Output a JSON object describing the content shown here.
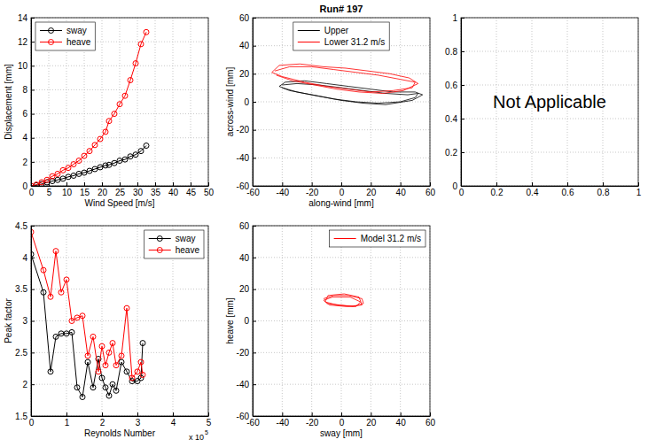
{
  "chart_data": [
    {
      "type": "line",
      "xlabel": "Wind Speed [m/s]",
      "ylabel": "Displacement [mm]",
      "x": [
        0,
        1.5,
        3,
        4.5,
        6,
        7.5,
        9,
        10.5,
        12,
        13.5,
        15,
        16.5,
        18,
        19.5,
        21,
        22,
        23.5,
        25,
        26.5,
        28,
        29.5,
        31,
        32.5
      ],
      "series": [
        {
          "name": "sway",
          "color": "#000000",
          "marker": "circle",
          "line_style": "solid",
          "values": [
            0,
            0.05,
            0.15,
            0.3,
            0.4,
            0.5,
            0.6,
            0.75,
            0.85,
            1.0,
            1.1,
            1.25,
            1.4,
            1.55,
            1.7,
            1.75,
            1.9,
            2.1,
            2.2,
            2.45,
            2.6,
            2.9,
            3.35
          ]
        },
        {
          "name": "heave",
          "color": "#ff0000",
          "marker": "circle",
          "line_style": "solid",
          "values": [
            0,
            0.1,
            0.3,
            0.5,
            0.8,
            1.0,
            1.3,
            1.5,
            1.8,
            2.1,
            2.5,
            2.9,
            3.4,
            3.9,
            4.5,
            5.4,
            6.0,
            6.8,
            7.5,
            8.8,
            10.2,
            11.8,
            12.8
          ]
        }
      ],
      "xlim": [
        0,
        50
      ],
      "ylim": [
        0,
        14
      ],
      "xticks": [
        0,
        5,
        10,
        15,
        20,
        25,
        30,
        35,
        40,
        45,
        50
      ],
      "yticks": [
        0,
        2,
        4,
        6,
        8,
        10,
        12,
        14
      ],
      "grid": true,
      "legend": "upper left"
    },
    {
      "type": "line",
      "title": "Run# 197",
      "xlabel": "along-wind [mm]",
      "ylabel": "across-wind [mm]",
      "series": [
        {
          "name": "Upper",
          "color": "#000000",
          "marker": "none",
          "line_style": "solid",
          "x": [
            -40,
            -30,
            -15,
            0,
            15,
            30,
            45,
            52,
            50,
            40,
            25,
            10,
            -5,
            -20,
            -35,
            -42,
            -38,
            -25,
            -10,
            5,
            20,
            35,
            50,
            55,
            48,
            30,
            15,
            0,
            -15,
            -30,
            -40
          ],
          "values": [
            12,
            13,
            12,
            10,
            8,
            6,
            5,
            6,
            3,
            0,
            -1,
            0,
            2,
            5,
            8,
            11,
            14,
            15,
            13,
            11,
            9,
            7,
            7,
            5,
            1,
            -2,
            -1,
            1,
            4,
            7,
            10
          ]
        },
        {
          "name": "Lower 31.2 m/s",
          "color": "#ff0000",
          "marker": "none",
          "line_style": "solid",
          "x": [
            -45,
            -35,
            -20,
            -5,
            10,
            25,
            40,
            50,
            48,
            35,
            20,
            5,
            -10,
            -25,
            -40,
            -47,
            -42,
            -28,
            -12,
            3,
            18,
            33,
            46,
            52,
            42,
            28,
            12,
            -3,
            -18,
            -33,
            -44
          ],
          "values": [
            22,
            25,
            25,
            23,
            21,
            19,
            16,
            14,
            10,
            8,
            7,
            9,
            11,
            14,
            18,
            21,
            26,
            27,
            25,
            24,
            22,
            20,
            17,
            13,
            8,
            6,
            7,
            9,
            12,
            15,
            19
          ]
        }
      ],
      "xlim": [
        -60,
        60
      ],
      "ylim": [
        -60,
        60
      ],
      "xticks": [
        -60,
        -40,
        -20,
        0,
        20,
        40,
        60
      ],
      "yticks": [
        -60,
        -40,
        -20,
        0,
        20,
        40,
        60
      ],
      "grid": true,
      "legend": "upper center"
    },
    {
      "type": "empty",
      "annotations": [
        {
          "text": "Not Applicable"
        }
      ],
      "xlim": [
        0,
        1
      ],
      "ylim": [
        0,
        1
      ],
      "xticks": [
        0,
        0.2,
        0.4,
        0.6,
        0.8,
        1
      ],
      "yticks": [
        0,
        0.2,
        0.4,
        0.6,
        0.8,
        1
      ],
      "grid": true
    },
    {
      "type": "line",
      "xlabel": "Reynolds Number",
      "ylabel": "Peak factor",
      "annotations": [
        {
          "text": "x 10",
          "superscript": "5"
        }
      ],
      "x": [
        0,
        0.35,
        0.55,
        0.7,
        0.85,
        1.0,
        1.15,
        1.3,
        1.45,
        1.6,
        1.75,
        1.9,
        2.0,
        2.1,
        2.2,
        2.3,
        2.4,
        2.55,
        2.7,
        2.85,
        3.0,
        3.1,
        3.15
      ],
      "series": [
        {
          "name": "sway",
          "color": "#000000",
          "marker": "circle",
          "line_style": "solid",
          "values": [
            4.05,
            3.45,
            2.2,
            2.75,
            2.8,
            2.8,
            2.82,
            1.95,
            1.8,
            2.35,
            1.95,
            2.4,
            2.1,
            1.95,
            1.82,
            2.0,
            1.9,
            2.35,
            2.2,
            2.05,
            2.05,
            2.1,
            2.65
          ]
        },
        {
          "name": "heave",
          "color": "#ff0000",
          "marker": "circle",
          "line_style": "solid",
          "values": [
            4.4,
            3.8,
            3.38,
            4.1,
            3.45,
            3.65,
            3.0,
            3.05,
            3.08,
            2.45,
            2.75,
            2.2,
            2.6,
            2.3,
            2.5,
            2.65,
            2.3,
            2.45,
            3.2,
            2.1,
            2.2,
            2.35,
            2.15
          ]
        }
      ],
      "xlim": [
        0,
        5
      ],
      "ylim": [
        1.5,
        4.5
      ],
      "xticks": [
        0,
        1,
        2,
        3,
        4,
        5
      ],
      "yticks": [
        1.5,
        2,
        2.5,
        3,
        3.5,
        4,
        4.5
      ],
      "grid": true,
      "legend": "upper right"
    },
    {
      "type": "line",
      "xlabel": "sway [mm]",
      "ylabel": "heave [mm]",
      "series": [
        {
          "name": "Model 31.2 m/s",
          "color": "#ff0000",
          "marker": "none",
          "line_style": "solid",
          "x": [
            -12,
            -5,
            5,
            14,
            15,
            8,
            -3,
            -11,
            -9,
            2,
            12,
            14,
            4,
            -8,
            -12,
            -6,
            6,
            13,
            10,
            -1,
            -10
          ],
          "values": [
            14,
            16,
            16,
            14,
            11,
            9,
            10,
            12,
            16,
            17,
            15,
            10,
            9,
            10,
            13,
            15,
            15,
            12,
            9,
            10,
            11
          ]
        }
      ],
      "xlim": [
        -60,
        60
      ],
      "ylim": [
        -60,
        60
      ],
      "xticks": [
        -60,
        -40,
        -20,
        0,
        20,
        40,
        60
      ],
      "yticks": [
        -60,
        -40,
        -20,
        0,
        20,
        40,
        60
      ],
      "grid": true,
      "legend": "upper right"
    }
  ]
}
